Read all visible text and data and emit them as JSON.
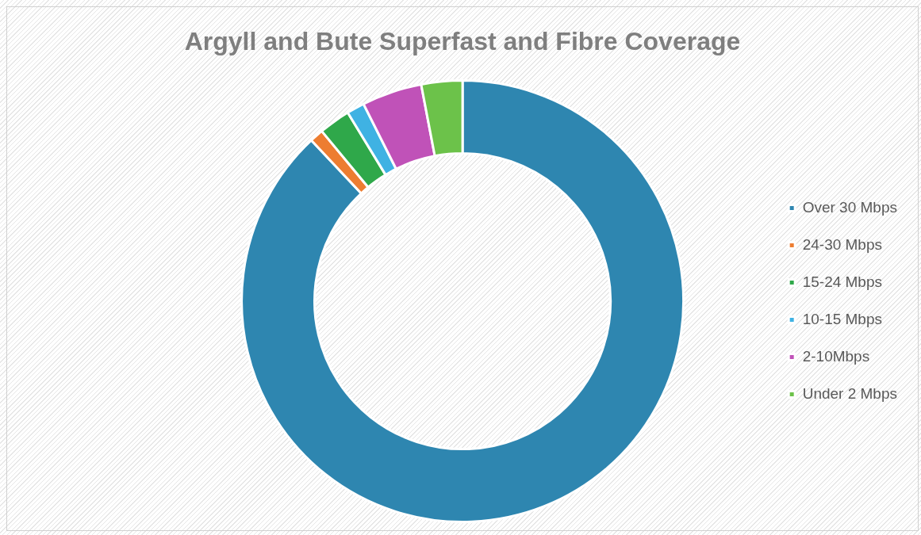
{
  "chart_data": {
    "type": "donut",
    "title": "Argyll and Bute Superfast and Fibre Coverage",
    "categories": [
      "Over 30 Mbps",
      "24-30 Mbps",
      "15-24 Mbps",
      "10-15 Mbps",
      "2-10Mbps",
      "Under 2 Mbps"
    ],
    "values": [
      88,
      1,
      2.3,
      1.3,
      4.4,
      3
    ],
    "colors": [
      "#2e86b0",
      "#ed7d31",
      "#2fa84a",
      "#3fb2e3",
      "#c052b8",
      "#6cc24a"
    ],
    "legend": "right"
  }
}
